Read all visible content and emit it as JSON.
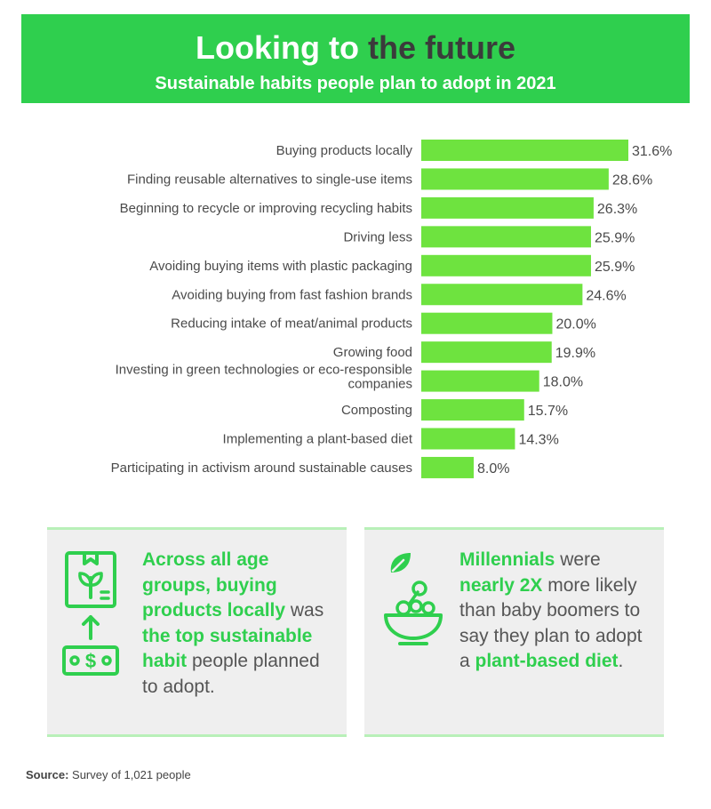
{
  "header": {
    "title_part1": "Looking to ",
    "title_part2": "the future",
    "subtitle": "Sustainable habits people plan to adopt in 2021"
  },
  "chart_data": {
    "type": "bar",
    "orientation": "horizontal",
    "categories": [
      "Buying products locally",
      "Finding reusable alternatives to single-use items",
      "Beginning to recycle or improving recycling habits",
      "Driving less",
      "Avoiding buying items with plastic packaging",
      "Avoiding buying from fast fashion brands",
      "Reducing intake of meat/animal products",
      "Growing food",
      "Investing in green technologies or eco-responsible companies",
      "Composting",
      "Implementing a plant-based diet",
      "Participating in activism around sustainable causes"
    ],
    "values": [
      31.6,
      28.6,
      26.3,
      25.9,
      25.9,
      24.6,
      20.0,
      19.9,
      18.0,
      15.7,
      14.3,
      8.0
    ],
    "value_labels": [
      "31.6%",
      "28.6%",
      "26.3%",
      "25.9%",
      "25.9%",
      "24.6%",
      "20.0%",
      "19.9%",
      "18.0%",
      "15.7%",
      "14.3%",
      "8.0%"
    ],
    "unit": "%",
    "bar_color": "#6ee33f",
    "xlim": [
      0,
      31.6
    ],
    "grid": false
  },
  "cards": {
    "left": {
      "seg1": "Across all age groups, buying products locally",
      "seg2": " was ",
      "seg3": "the top sustainable habit",
      "seg4": " people planned to adopt."
    },
    "right": {
      "seg1": "Millennials",
      "seg2": " were ",
      "seg3": "nearly 2X",
      "seg4": " more likely than baby boomers to say they plan to adopt a ",
      "seg5": "plant-based diet",
      "seg6": "."
    },
    "icons": [
      "local-product-box-icon",
      "up-arrow-icon",
      "money-bill-icon",
      "leaf-icon",
      "salad-bowl-icon"
    ]
  },
  "source": {
    "label": "Source:",
    "text": " Survey of 1,021 people"
  },
  "colors": {
    "accent": "#2fcf4e",
    "bar": "#6ee33f",
    "card_border": "#b8f0b8",
    "card_bg": "#efefef"
  }
}
